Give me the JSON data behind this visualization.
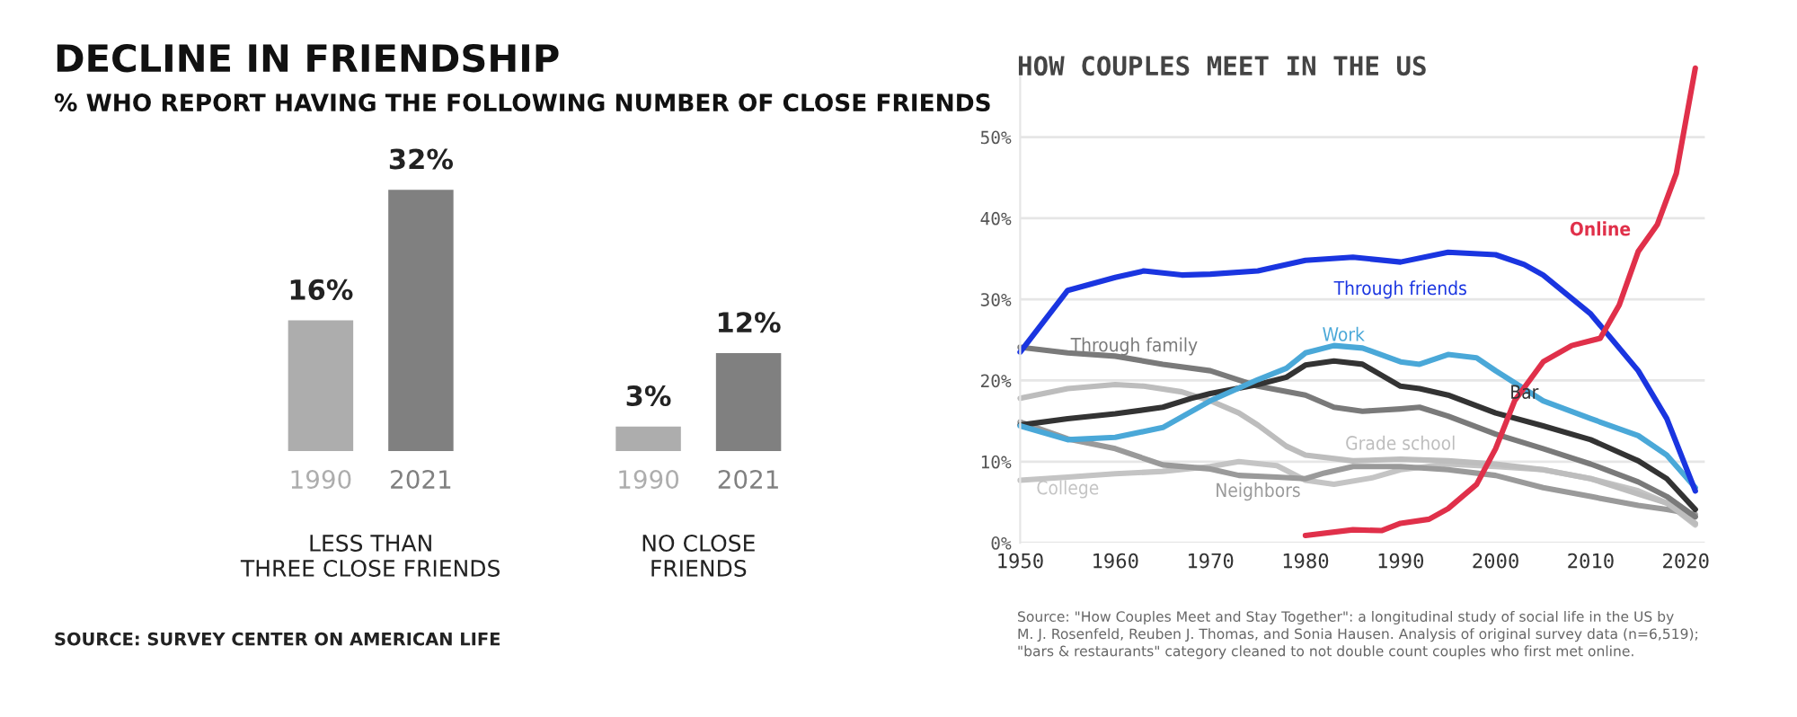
{
  "chart_data": [
    {
      "type": "bar",
      "title": "DECLINE IN FRIENDSHIP",
      "subtitle": "% WHO REPORT HAVING THE FOLLOWING NUMBER OF CLOSE FRIENDS",
      "categories": [
        "LESS THAN\nTHREE CLOSE FRIENDS",
        "NO CLOSE\nFRIENDS"
      ],
      "series": [
        {
          "name": "1990",
          "color": "#adadad",
          "values": [
            16,
            3
          ],
          "value_labels": [
            "16%",
            "3%"
          ]
        },
        {
          "name": "2021",
          "color": "#808080",
          "values": [
            32,
            12
          ],
          "value_labels": [
            "32%",
            "12%"
          ]
        }
      ],
      "grid": false,
      "legend": false,
      "annotations": [
        "SOURCE: SURVEY CENTER ON AMERICAN LIFE"
      ]
    },
    {
      "type": "line",
      "title": "HOW COUPLES MEET IN THE US",
      "xlim": [
        1950,
        2022
      ],
      "xticks": [
        1950,
        1960,
        1970,
        1980,
        1990,
        2000,
        2010,
        2020
      ],
      "ylim": [
        0,
        60
      ],
      "yticks": [
        {
          "value": 0,
          "label": "0%"
        },
        {
          "value": 10,
          "label": "10%"
        },
        {
          "value": 20,
          "label": "20%"
        },
        {
          "value": 30,
          "label": "30%"
        },
        {
          "value": 40,
          "label": "40%"
        },
        {
          "value": 50,
          "label": "50%"
        }
      ],
      "grid": "y",
      "legend": false,
      "marker": "none",
      "line_style": "solid",
      "series": [
        {
          "name": "College",
          "color": "#c4c4c4",
          "x": [
            1950,
            1955,
            1960,
            1965,
            1970,
            1973,
            1977,
            1980,
            1983,
            1987,
            1990,
            1995,
            2000,
            2005,
            2010,
            2015,
            2018,
            2021
          ],
          "values": [
            7.7,
            8.1,
            8.5,
            8.8,
            9.4,
            10.0,
            9.5,
            7.7,
            7.2,
            8.0,
            9.0,
            9.7,
            9.4,
            9.0,
            7.9,
            6.4,
            4.9,
            2.2
          ]
        },
        {
          "name": "Neighbors",
          "color": "#9a9a9a",
          "x": [
            1950,
            1955,
            1960,
            1965,
            1970,
            1973,
            1977,
            1980,
            1982,
            1985,
            1990,
            1995,
            2000,
            2005,
            2010,
            2015,
            2018,
            2021
          ],
          "values": [
            14.9,
            12.8,
            11.6,
            9.6,
            9.1,
            8.3,
            8.1,
            7.9,
            8.6,
            9.4,
            9.4,
            9.0,
            8.3,
            6.8,
            5.7,
            4.6,
            4.1,
            3.5
          ]
        },
        {
          "name": "Grade school",
          "color": "#bdbdbd",
          "x": [
            1950,
            1955,
            1960,
            1963,
            1967,
            1970,
            1973,
            1975,
            1978,
            1980,
            1985,
            1990,
            1995,
            2000,
            2005,
            2010,
            2015,
            2018,
            2021
          ],
          "values": [
            17.8,
            19.0,
            19.5,
            19.3,
            18.6,
            17.5,
            16.0,
            14.5,
            11.9,
            10.8,
            10.1,
            10.3,
            10.1,
            9.7,
            9.0,
            7.9,
            6.0,
            4.9,
            2.4
          ]
        },
        {
          "name": "Through family",
          "color": "#7a7a7a",
          "x": [
            1950,
            1955,
            1960,
            1965,
            1970,
            1975,
            1980,
            1983,
            1986,
            1990,
            1992,
            1995,
            2000,
            2005,
            2010,
            2015,
            2018,
            2021
          ],
          "values": [
            24.1,
            23.4,
            23.0,
            22.0,
            21.2,
            19.3,
            18.2,
            16.7,
            16.2,
            16.5,
            16.7,
            15.6,
            13.4,
            11.6,
            9.7,
            7.5,
            5.7,
            3.2
          ]
        },
        {
          "name": "Bar",
          "color": "#333333",
          "x": [
            1950,
            1955,
            1960,
            1965,
            1968,
            1970,
            1975,
            1978,
            1980,
            1983,
            1986,
            1990,
            1992,
            1995,
            2000,
            2005,
            2010,
            2015,
            2018,
            2021
          ],
          "values": [
            14.5,
            15.3,
            15.9,
            16.7,
            17.8,
            18.4,
            19.5,
            20.4,
            21.9,
            22.4,
            22.0,
            19.3,
            19.0,
            18.2,
            16.0,
            14.4,
            12.7,
            10.1,
            7.9,
            4.1
          ]
        },
        {
          "name": "Work",
          "color": "#4aa8d8",
          "x": [
            1950,
            1955,
            1960,
            1965,
            1970,
            1975,
            1978,
            1980,
            1983,
            1986,
            1990,
            1992,
            1995,
            1998,
            2000,
            2005,
            2010,
            2015,
            2018,
            2021
          ],
          "values": [
            14.4,
            12.7,
            13.0,
            14.2,
            17.5,
            20.1,
            21.5,
            23.4,
            24.3,
            24.0,
            22.3,
            22.0,
            23.2,
            22.8,
            21.2,
            17.5,
            15.3,
            13.2,
            10.8,
            6.8
          ]
        },
        {
          "name": "Through friends",
          "color": "#1a35e0",
          "x": [
            1950,
            1955,
            1960,
            1963,
            1967,
            1970,
            1975,
            1980,
            1985,
            1990,
            1995,
            2000,
            2003,
            2005,
            2010,
            2015,
            2018,
            2021
          ],
          "values": [
            23.5,
            31.1,
            32.7,
            33.5,
            33.0,
            33.1,
            33.5,
            34.8,
            35.2,
            34.6,
            35.8,
            35.5,
            34.3,
            33.0,
            28.2,
            21.2,
            15.3,
            6.4
          ]
        },
        {
          "name": "Online",
          "color": "#e0304a",
          "x": [
            1980,
            1985,
            1988,
            1990,
            1993,
            1995,
            1998,
            2000,
            2002,
            2005,
            2008,
            2011,
            2013,
            2015,
            2017,
            2019,
            2021
          ],
          "values": [
            0.9,
            1.6,
            1.5,
            2.4,
            2.9,
            4.2,
            7.2,
            11.6,
            17.5,
            22.3,
            24.3,
            25.2,
            29.3,
            35.9,
            39.2,
            45.5,
            58.5
          ]
        }
      ],
      "annotations": [
        "Source: \"How Couples Meet and Stay Together\": a longitudinal study of social life in the US by\nM. J. Rosenfeld, Reuben J. Thomas, and Sonia Hausen. Analysis of original survey data (n=6,519);\n\"bars & restaurants\" category cleaned to not double count couples who first met online."
      ]
    }
  ]
}
